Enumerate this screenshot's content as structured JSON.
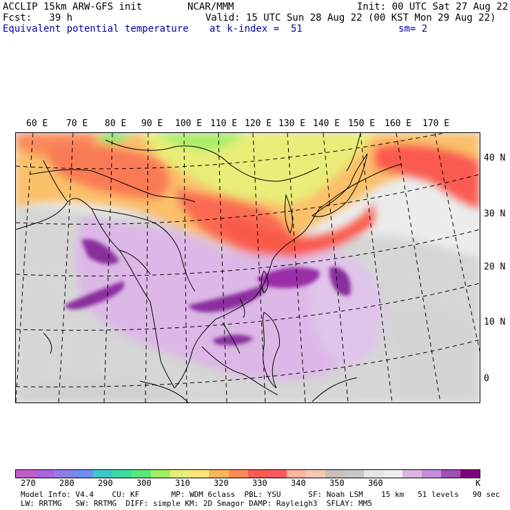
{
  "header": {
    "line1_left": "ACCLIP 15km ARW-GFS init",
    "line1_mid": "NCAR/MMM",
    "line1_right": "Init: 00 UTC Sat 27 Aug 22",
    "line2_left": "Fcst:   39 h",
    "line2_right": "Valid: 15 UTC Sun 28 Aug 22 (00 KST Mon 29 Aug 22)",
    "line3_field": "Equivalent potential temperature",
    "line3_level": "at k-index =  51",
    "line3_smooth": "sm= 2"
  },
  "axes": {
    "lon_labels": [
      "60 E",
      "70 E",
      "80 E",
      "90 E",
      "100 E",
      "110 E",
      "120 E",
      "130 E",
      "140 E",
      "150 E",
      "160 E",
      "170 E"
    ],
    "lat_labels": [
      "40 N",
      "30 N",
      "20 N",
      "10 N",
      "0"
    ]
  },
  "colorbar": {
    "colors": [
      "#c25ac8",
      "#a864dc",
      "#8c7ee6",
      "#6e8ef0",
      "#3cc8c8",
      "#3cdca0",
      "#5ae678",
      "#a0f064",
      "#e6f078",
      "#fae678",
      "#fab45a",
      "#fa8c5a",
      "#fa5a50",
      "#ff5a64",
      "#fab4a0",
      "#f0c8b4",
      "#c8c0b8",
      "#c8c8c8",
      "#e6e6e6",
      "#f0f0f0",
      "#dcb4e6",
      "#c88cdc",
      "#a050b4",
      "#800080"
    ],
    "tick_labels": [
      "270",
      "280",
      "290",
      "300",
      "310",
      "320",
      "330",
      "340",
      "350",
      "360"
    ],
    "units": "K"
  },
  "footer": {
    "line1": "Model Info: V4.4    CU: KF       MP: WDM 6class  PBL: YSU      SF: Noah LSM    15 km   51 levels   90 sec",
    "line2": "LW: RRTMG   SW: RRTMG  DIFF: simple KM: 2D Smagor DAMP: Rayleigh3  SFLAY: MM5"
  }
}
